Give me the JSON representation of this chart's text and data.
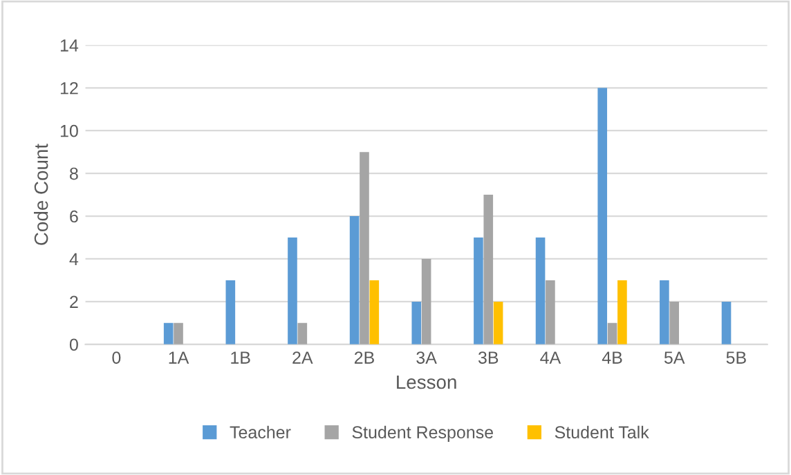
{
  "chart_data": {
    "type": "bar",
    "xlabel": "Lesson",
    "ylabel": "Code Count",
    "categories": [
      "0",
      "1A",
      "1B",
      "2A",
      "2B",
      "3A",
      "3B",
      "4A",
      "4B",
      "5A",
      "5B"
    ],
    "series": [
      {
        "name": "Teacher",
        "color": "#5b9bd5",
        "values": [
          0,
          1,
          3,
          5,
          6,
          2,
          5,
          5,
          12,
          3,
          2
        ]
      },
      {
        "name": "Student Response",
        "color": "#a5a5a5",
        "values": [
          0,
          1,
          0,
          1,
          9,
          4,
          7,
          3,
          1,
          2,
          0
        ]
      },
      {
        "name": "Student Talk",
        "color": "#ffc000",
        "values": [
          0,
          0,
          0,
          0,
          3,
          0,
          2,
          0,
          3,
          0,
          0
        ]
      }
    ],
    "ylim": [
      0,
      14
    ],
    "yticks": [
      0,
      2,
      4,
      6,
      8,
      10,
      12,
      14
    ],
    "grid": "y",
    "legend": "bottom"
  }
}
